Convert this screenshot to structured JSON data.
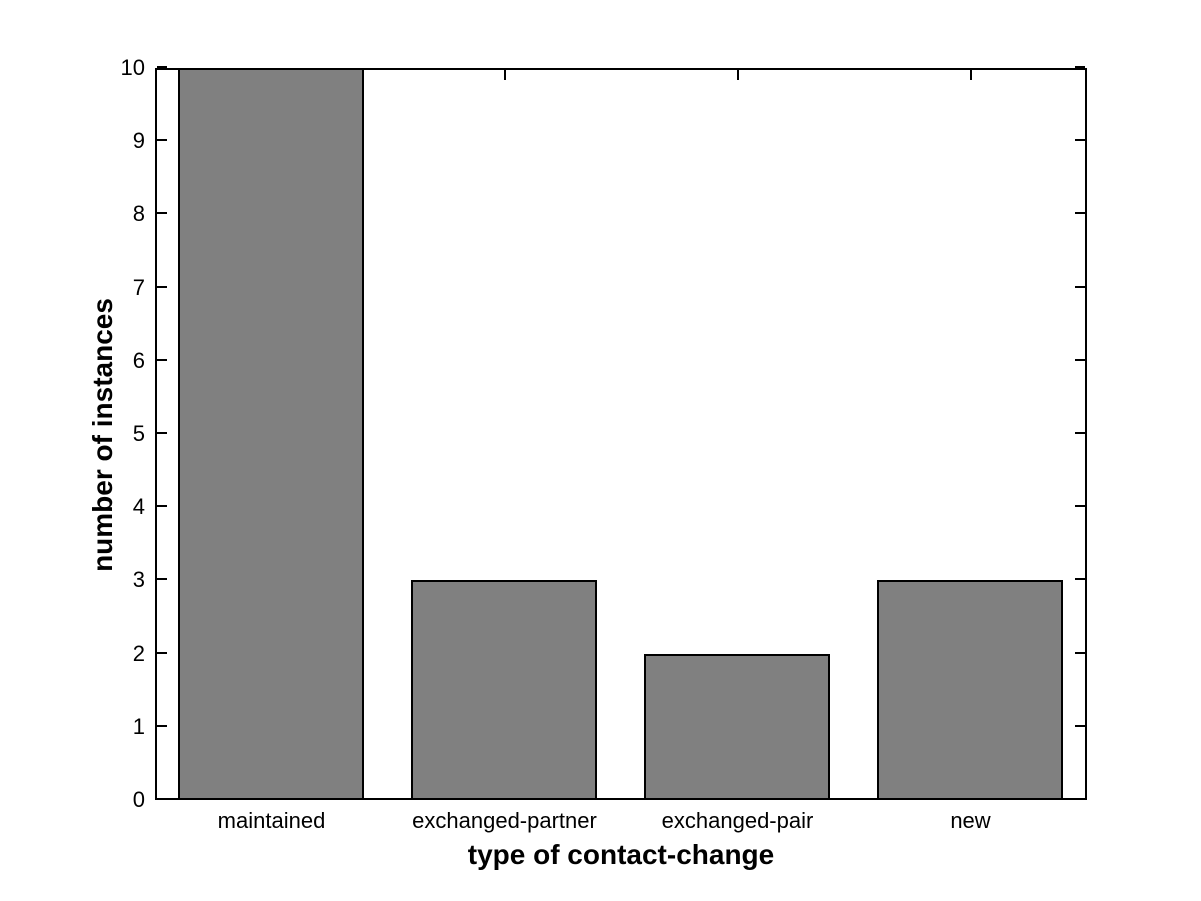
{
  "chart_data": {
    "type": "bar",
    "categories": [
      "maintained",
      "exchanged-partner",
      "exchanged-pair",
      "new"
    ],
    "values": [
      10,
      3,
      2,
      3
    ],
    "xlabel": "type of contact-change",
    "ylabel": "number of instances",
    "ylim": [
      0,
      10
    ],
    "yticks": [
      0,
      1,
      2,
      3,
      4,
      5,
      6,
      7,
      8,
      9,
      10
    ],
    "bar_color": "#808080",
    "bar_edge_color": "#000000",
    "axis_color": "#000000",
    "background_color": "#ffffff",
    "grid": false,
    "legend_position": "none",
    "bar_width_fraction": 0.8
  }
}
